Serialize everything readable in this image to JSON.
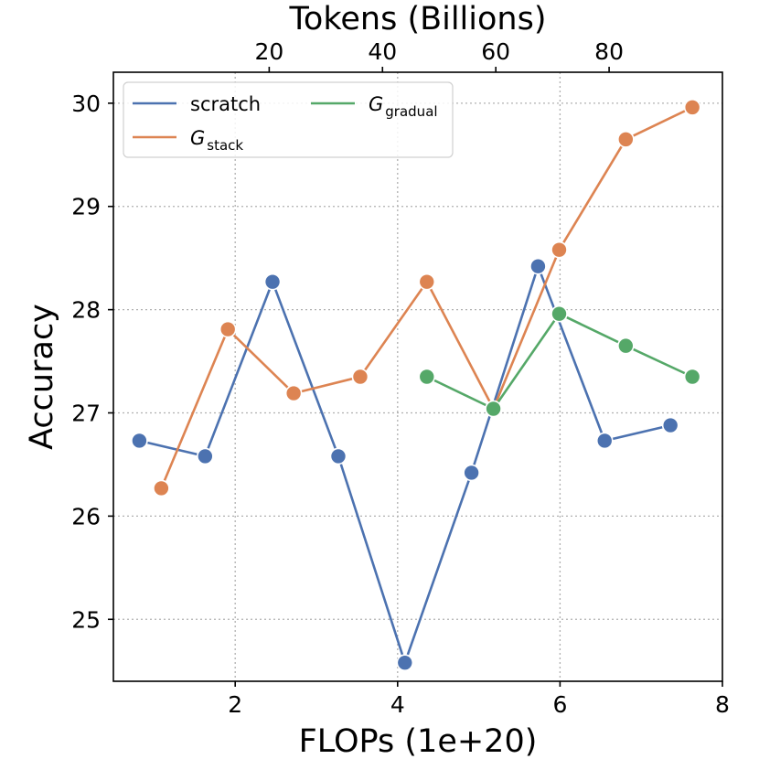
{
  "chart_data": {
    "type": "line",
    "xlabel": "FLOPs (1e+20)",
    "ylabel": "Accuracy",
    "top_xlabel": "Tokens (Billions)",
    "xlim": [
      0.5,
      8.0
    ],
    "ylim": [
      24.4,
      30.3
    ],
    "top_xlim": [
      -7.5,
      100.0
    ],
    "xticks": [
      2,
      4,
      6,
      8
    ],
    "yticks": [
      25,
      26,
      27,
      28,
      29,
      30
    ],
    "top_xticks": [
      20,
      40,
      60,
      80
    ],
    "grid": true,
    "legend": {
      "placement": "upper-left",
      "columns": 2,
      "entries": [
        {
          "series": 0,
          "base": "scratch",
          "sub": ""
        },
        {
          "series": 1,
          "base": "G",
          "sub": "stack"
        },
        {
          "series": 2,
          "base": "G",
          "sub": "gradual"
        }
      ]
    },
    "series": [
      {
        "name": "scratch",
        "color": "#4c72b0",
        "x": [
          0.82,
          1.63,
          2.46,
          3.27,
          4.09,
          4.91,
          5.73,
          6.55,
          7.36
        ],
        "y": [
          26.73,
          26.58,
          28.27,
          26.58,
          24.58,
          26.42,
          28.42,
          26.73,
          26.88
        ]
      },
      {
        "name": "G_stack",
        "color": "#dd8452",
        "x": [
          1.09,
          1.91,
          2.72,
          3.54,
          4.36,
          5.18,
          5.99,
          6.81,
          7.63
        ],
        "y": [
          26.27,
          27.81,
          27.19,
          27.35,
          28.27,
          27.04,
          28.58,
          29.65,
          29.96
        ]
      },
      {
        "name": "G_gradual",
        "color": "#55a868",
        "x": [
          4.36,
          5.18,
          5.99,
          6.81,
          7.63
        ],
        "y": [
          27.35,
          27.04,
          27.96,
          27.65,
          27.35
        ]
      }
    ]
  }
}
